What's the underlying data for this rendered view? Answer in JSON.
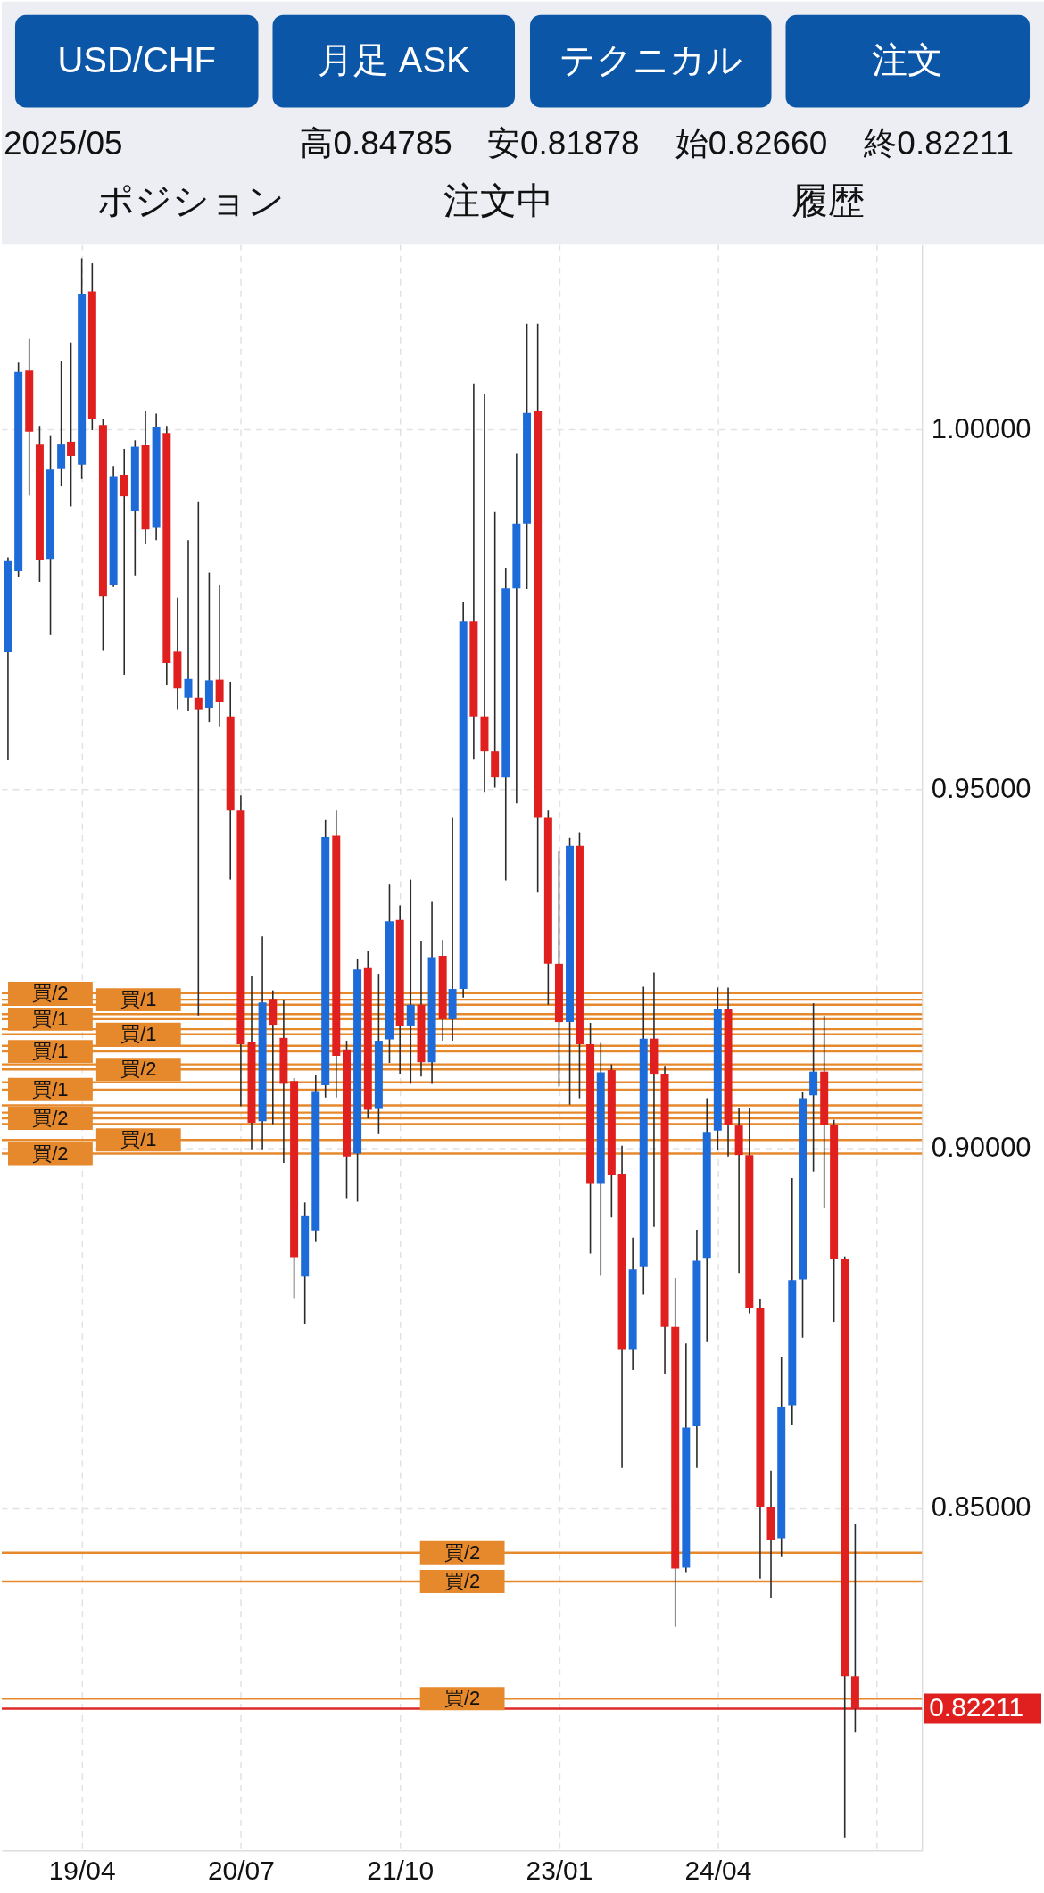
{
  "chart_data": {
    "type": "candlestick",
    "title": "USD/CHF",
    "annotations": [
      "月足 ASK",
      "テクニカル",
      "注文",
      "2025/05",
      "高0.84785",
      "安0.81878",
      "始0.82660",
      "終0.82211",
      "ポジション",
      "注文中",
      "履歴",
      "0.82211"
    ],
    "x": [
      "2018-09",
      "2018-10",
      "2018-11",
      "2018-12",
      "2019-01",
      "2019-02",
      "2019-03",
      "2019-04",
      "2019-05",
      "2019-06",
      "2019-07",
      "2019-08",
      "2019-09",
      "2019-10",
      "2019-11",
      "2019-12",
      "2020-01",
      "2020-02",
      "2020-03",
      "2020-04",
      "2020-05",
      "2020-06",
      "2020-07",
      "2020-08",
      "2020-09",
      "2020-10",
      "2020-11",
      "2020-12",
      "2021-01",
      "2021-02",
      "2021-03",
      "2021-04",
      "2021-05",
      "2021-06",
      "2021-07",
      "2021-08",
      "2021-09",
      "2021-10",
      "2021-11",
      "2021-12",
      "2022-01",
      "2022-02",
      "2022-03",
      "2022-04",
      "2022-05",
      "2022-06",
      "2022-07",
      "2022-08",
      "2022-09",
      "2022-10",
      "2022-11",
      "2022-12",
      "2023-01",
      "2023-02",
      "2023-03",
      "2023-04",
      "2023-05",
      "2023-06",
      "2023-07",
      "2023-08",
      "2023-09",
      "2023-10",
      "2023-11",
      "2023-12",
      "2024-01",
      "2024-02",
      "2024-03",
      "2024-04",
      "2024-05",
      "2024-06",
      "2024-07",
      "2024-08",
      "2024-09",
      "2024-10",
      "2024-11",
      "2024-12",
      "2025-01",
      "2025-02",
      "2025-03",
      "2025-04",
      "2025-05"
    ],
    "ohlc": [
      [
        0.9691,
        0.9822,
        0.954,
        0.9817
      ],
      [
        0.9803,
        1.0093,
        0.9795,
        1.008
      ],
      [
        1.0082,
        1.0126,
        0.9908,
        0.9997
      ],
      [
        0.9979,
        1.0005,
        0.9788,
        0.9819
      ],
      [
        0.982,
        0.9992,
        0.9715,
        0.9944
      ],
      [
        0.9946,
        1.0095,
        0.9921,
        0.9979
      ],
      [
        0.9983,
        1.0121,
        0.9893,
        0.9963
      ],
      [
        0.9951,
        1.0238,
        0.9931,
        1.0189
      ],
      [
        1.0192,
        1.0231,
        0.9999,
        1.0014
      ],
      [
        1.0006,
        1.0015,
        0.9693,
        0.9768
      ],
      [
        0.9783,
        0.9949,
        0.9781,
        0.9935
      ],
      [
        0.9937,
        0.9973,
        0.9659,
        0.9907
      ],
      [
        0.9887,
        0.9985,
        0.9797,
        0.9976
      ],
      [
        0.9978,
        1.0025,
        0.984,
        0.9861
      ],
      [
        0.9863,
        1.0022,
        0.9846,
        1.0004
      ],
      [
        0.9995,
        1.0005,
        0.9645,
        0.9675
      ],
      [
        0.9692,
        0.9766,
        0.9611,
        0.964
      ],
      [
        0.9627,
        0.9846,
        0.9608,
        0.9653
      ],
      [
        0.9627,
        0.99,
        0.9185,
        0.9611
      ],
      [
        0.9613,
        0.9801,
        0.9593,
        0.9651
      ],
      [
        0.9652,
        0.9783,
        0.9586,
        0.9621
      ],
      [
        0.9601,
        0.9649,
        0.9374,
        0.947
      ],
      [
        0.947,
        0.9491,
        0.9059,
        0.9145
      ],
      [
        0.9148,
        0.924,
        0.8999,
        0.9036
      ],
      [
        0.9038,
        0.9295,
        0.8999,
        0.9203
      ],
      [
        0.9208,
        0.922,
        0.9034,
        0.9171
      ],
      [
        0.9154,
        0.9207,
        0.898,
        0.909
      ],
      [
        0.9094,
        0.9098,
        0.8792,
        0.8849
      ],
      [
        0.8822,
        0.8925,
        0.8756,
        0.8907
      ],
      [
        0.8886,
        0.9102,
        0.887,
        0.908
      ],
      [
        0.9088,
        0.9457,
        0.9071,
        0.9433
      ],
      [
        0.9435,
        0.947,
        0.9071,
        0.9129
      ],
      [
        0.9138,
        0.915,
        0.8931,
        0.8989
      ],
      [
        0.8993,
        0.9263,
        0.8926,
        0.9249
      ],
      [
        0.9251,
        0.9275,
        0.9042,
        0.9054
      ],
      [
        0.9055,
        0.9243,
        0.902,
        0.915
      ],
      [
        0.9152,
        0.9367,
        0.9119,
        0.9316
      ],
      [
        0.9318,
        0.9338,
        0.9104,
        0.917
      ],
      [
        0.917,
        0.9374,
        0.909,
        0.92
      ],
      [
        0.92,
        0.9289,
        0.91,
        0.912
      ],
      [
        0.912,
        0.9343,
        0.909,
        0.9266
      ],
      [
        0.9268,
        0.929,
        0.915,
        0.918
      ],
      [
        0.918,
        0.9461,
        0.915,
        0.9222
      ],
      [
        0.9222,
        0.976,
        0.921,
        0.9733
      ],
      [
        0.9733,
        1.0064,
        0.9542,
        0.9601
      ],
      [
        0.9601,
        1.0049,
        0.9496,
        0.9552
      ],
      [
        0.9552,
        0.9885,
        0.9502,
        0.9516
      ],
      [
        0.9516,
        0.9808,
        0.9373,
        0.9779
      ],
      [
        0.9779,
        0.9966,
        0.948,
        0.9869
      ],
      [
        0.9869,
        1.0147,
        0.9778,
        1.0023
      ],
      [
        1.0025,
        1.0147,
        0.9357,
        0.9461
      ],
      [
        0.9461,
        0.947,
        0.92,
        0.9257
      ],
      [
        0.9257,
        0.9413,
        0.9086,
        0.9176
      ],
      [
        0.9176,
        0.9432,
        0.9061,
        0.9421
      ],
      [
        0.9421,
        0.944,
        0.907,
        0.9145
      ],
      [
        0.9145,
        0.9175,
        0.8854,
        0.8951
      ],
      [
        0.8951,
        0.9147,
        0.8823,
        0.9106
      ],
      [
        0.9109,
        0.9117,
        0.8904,
        0.8963
      ],
      [
        0.8965,
        0.9004,
        0.8556,
        0.872
      ],
      [
        0.872,
        0.8876,
        0.8692,
        0.8832
      ],
      [
        0.8835,
        0.9225,
        0.8797,
        0.9153
      ],
      [
        0.9153,
        0.9245,
        0.8891,
        0.9104
      ],
      [
        0.9104,
        0.9115,
        0.8686,
        0.8752
      ],
      [
        0.8752,
        0.882,
        0.8335,
        0.8416
      ],
      [
        0.8417,
        0.8729,
        0.8411,
        0.8612
      ],
      [
        0.8614,
        0.8887,
        0.8556,
        0.8844
      ],
      [
        0.8847,
        0.907,
        0.8731,
        0.9023
      ],
      [
        0.9025,
        0.9224,
        0.8998,
        0.9194
      ],
      [
        0.9194,
        0.9224,
        0.8989,
        0.9032
      ],
      [
        0.9032,
        0.9057,
        0.8827,
        0.8991
      ],
      [
        0.8991,
        0.9057,
        0.8771,
        0.8779
      ],
      [
        0.8779,
        0.8791,
        0.8402,
        0.8501
      ],
      [
        0.8501,
        0.8552,
        0.8375,
        0.8456
      ],
      [
        0.8458,
        0.871,
        0.8433,
        0.8641
      ],
      [
        0.8643,
        0.8959,
        0.8615,
        0.8817
      ],
      [
        0.8818,
        0.9079,
        0.8737,
        0.907
      ],
      [
        0.9074,
        0.9202,
        0.8968,
        0.9107
      ],
      [
        0.9107,
        0.9185,
        0.8918,
        0.9033
      ],
      [
        0.9033,
        0.904,
        0.8759,
        0.8846
      ],
      [
        0.8846,
        0.885,
        0.8042,
        0.8266
      ],
      [
        0.8266,
        0.84785,
        0.81878,
        0.82211
      ]
    ],
    "colors": [
      "#1c6bd9",
      "#1c6bd9",
      "#e0201e",
      "#e0201e",
      "#1c6bd9",
      "#1c6bd9",
      "#e0201e",
      "#1c6bd9",
      "#e0201e",
      "#e0201e",
      "#1c6bd9",
      "#e0201e",
      "#1c6bd9",
      "#e0201e",
      "#1c6bd9",
      "#e0201e",
      "#e0201e",
      "#1c6bd9",
      "#e0201e",
      "#1c6bd9",
      "#e0201e",
      "#e0201e",
      "#e0201e",
      "#e0201e",
      "#1c6bd9",
      "#e0201e",
      "#e0201e",
      "#e0201e",
      "#1c6bd9",
      "#1c6bd9",
      "#1c6bd9",
      "#e0201e",
      "#e0201e",
      "#1c6bd9",
      "#e0201e",
      "#1c6bd9",
      "#1c6bd9",
      "#e0201e",
      "#1c6bd9",
      "#e0201e",
      "#1c6bd9",
      "#e0201e",
      "#1c6bd9",
      "#1c6bd9",
      "#e0201e",
      "#e0201e",
      "#e0201e",
      "#1c6bd9",
      "#1c6bd9",
      "#1c6bd9",
      "#e0201e",
      "#e0201e",
      "#e0201e",
      "#1c6bd9",
      "#e0201e",
      "#e0201e",
      "#1c6bd9",
      "#e0201e",
      "#e0201e",
      "#1c6bd9",
      "#1c6bd9",
      "#e0201e",
      "#e0201e",
      "#e0201e",
      "#1c6bd9",
      "#1c6bd9",
      "#1c6bd9",
      "#1c6bd9",
      "#e0201e",
      "#e0201e",
      "#e0201e",
      "#e0201e",
      "#e0201e",
      "#1c6bd9",
      "#1c6bd9",
      "#1c6bd9",
      "#1c6bd9",
      "#e0201e",
      "#e0201e",
      "#e0201e",
      "#e0201e"
    ],
    "xlim": [
      "2018-08-27",
      "2025-10-27"
    ],
    "xticks": [
      {
        "value": "2019-04",
        "label": "19/04"
      },
      {
        "value": "2020-07",
        "label": "20/07"
      },
      {
        "value": "2021-10",
        "label": "21/10"
      },
      {
        "value": "2023-01",
        "label": "23/01"
      },
      {
        "value": "2024-04",
        "label": "24/04"
      },
      {
        "value": "2025-07",
        "label": null
      }
    ],
    "ylim": [
      0.8024,
      1.0258
    ],
    "yticks": [
      {
        "value": 0.85,
        "label": "0.85000"
      },
      {
        "value": 0.9,
        "label": "0.90000"
      },
      {
        "value": 0.95,
        "label": "0.95000"
      },
      {
        "value": 1.0,
        "label": "1.00000"
      }
    ],
    "grid": true,
    "ref_lines": [
      {
        "axis": "y",
        "value": 0.9216,
        "label": "買/2",
        "color": "#e6892c"
      },
      {
        "axis": "y",
        "value": 0.9207,
        "label": "買/1",
        "color": "#e6892c"
      },
      {
        "axis": "y",
        "value": 0.92,
        "color": "#e6892c"
      },
      {
        "axis": "y",
        "value": 0.9187,
        "color": "#e6892c"
      },
      {
        "axis": "y",
        "value": 0.918,
        "label": "買/1",
        "color": "#e6892c"
      },
      {
        "axis": "y",
        "value": 0.9166,
        "color": "#e6892c"
      },
      {
        "axis": "y",
        "value": 0.9159,
        "label": "買/1",
        "color": "#e6892c"
      },
      {
        "axis": "y",
        "value": 0.9143,
        "color": "#e6892c"
      },
      {
        "axis": "y",
        "value": 0.9135,
        "label": "買/1",
        "color": "#e6892c"
      },
      {
        "axis": "y",
        "value": 0.9117,
        "color": "#e6892c"
      },
      {
        "axis": "y",
        "value": 0.911,
        "label": "買/2",
        "color": "#e6892c"
      },
      {
        "axis": "y",
        "value": 0.9092,
        "color": "#e6892c"
      },
      {
        "axis": "y",
        "value": 0.9082,
        "label": "買/1",
        "color": "#e6892c"
      },
      {
        "axis": "y",
        "value": 0.906,
        "color": "#e6892c"
      },
      {
        "axis": "y",
        "value": 0.905,
        "color": "#e6892c"
      },
      {
        "axis": "y",
        "value": 0.9042,
        "label": "買/2",
        "color": "#e6892c"
      },
      {
        "axis": "y",
        "value": 0.9034,
        "color": "#e6892c"
      },
      {
        "axis": "y",
        "value": 0.9012,
        "label": "買/1",
        "color": "#e6892c"
      },
      {
        "axis": "y",
        "value": 0.8993,
        "label": "買/2",
        "color": "#e6892c"
      },
      {
        "axis": "y",
        "value": 0.8438,
        "label": "買/2",
        "color": "#e6892c"
      },
      {
        "axis": "y",
        "value": 0.8398,
        "label": "買/2",
        "color": "#e6892c"
      },
      {
        "axis": "y",
        "value": 0.8235,
        "label": "買/2",
        "color": "#e6892c"
      },
      {
        "axis": "y",
        "value": 0.82211,
        "color": "#dc2a2a"
      }
    ]
  }
}
